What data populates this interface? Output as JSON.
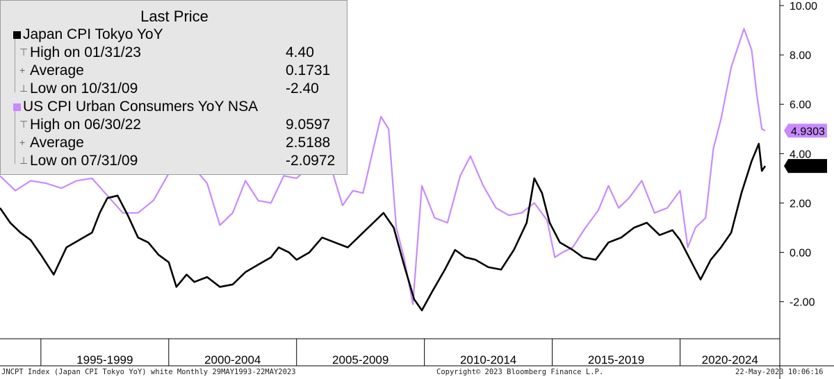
{
  "chart_data": {
    "type": "line",
    "title": "Last Price",
    "x_range": [
      "1993-05",
      "2023-05"
    ],
    "ylim": [
      -3.5,
      10.0
    ],
    "y_ticks": [
      -2.0,
      0.0,
      2.0,
      4.0,
      6.0,
      8.0,
      10.0
    ],
    "y_tick_labels": [
      "-2.00",
      "0.00",
      "2.00",
      "4.00",
      "6.00",
      "8.00",
      "10.00"
    ],
    "x_period_labels": [
      "1995-1999",
      "2000-2004",
      "2005-2009",
      "2010-2014",
      "2015-2019",
      "2020-2024"
    ],
    "grid": false,
    "legend_placement": "top-left",
    "series": [
      {
        "name": "Japan CPI Tokyo YoY",
        "color": "#000000",
        "last_value_label": "3.50",
        "x": [
          1993.4,
          1993.8,
          1994.2,
          1994.6,
          1995.0,
          1995.5,
          1996.0,
          1996.5,
          1997.0,
          1997.3,
          1997.6,
          1998.0,
          1998.4,
          1998.8,
          1999.2,
          1999.6,
          2000.0,
          2000.3,
          2000.7,
          2001.0,
          2001.5,
          2002.0,
          2002.5,
          2003.0,
          2003.5,
          2004.0,
          2004.3,
          2004.7,
          2005.0,
          2005.5,
          2006.0,
          2006.5,
          2007.0,
          2007.5,
          2008.0,
          2008.4,
          2008.8,
          2009.2,
          2009.6,
          2009.9,
          2010.3,
          2010.8,
          2011.2,
          2011.6,
          2012.0,
          2012.5,
          2013.0,
          2013.5,
          2014.0,
          2014.3,
          2014.6,
          2014.9,
          2015.3,
          2015.8,
          2016.2,
          2016.7,
          2017.2,
          2017.7,
          2018.2,
          2018.7,
          2019.2,
          2019.7,
          2020.0,
          2020.4,
          2020.8,
          2021.2,
          2021.6,
          2022.0,
          2022.4,
          2022.8,
          2023.08,
          2023.2,
          2023.33
        ],
        "y": [
          1.8,
          1.2,
          0.8,
          0.5,
          -0.1,
          -0.9,
          0.2,
          0.5,
          0.8,
          1.6,
          2.2,
          2.3,
          1.5,
          0.6,
          0.4,
          -0.1,
          -0.4,
          -1.4,
          -0.9,
          -1.2,
          -1.0,
          -1.4,
          -1.3,
          -0.8,
          -0.5,
          -0.2,
          0.2,
          0.0,
          -0.3,
          0.0,
          0.6,
          0.4,
          0.2,
          0.7,
          1.2,
          1.6,
          1.0,
          -0.5,
          -1.9,
          -2.35,
          -1.6,
          -0.7,
          0.1,
          -0.2,
          -0.3,
          -0.6,
          -0.7,
          0.1,
          1.2,
          3.0,
          2.4,
          1.2,
          0.4,
          0.1,
          -0.2,
          -0.3,
          0.4,
          0.6,
          1.0,
          1.2,
          0.7,
          0.9,
          0.5,
          -0.3,
          -1.1,
          -0.3,
          0.2,
          0.8,
          2.4,
          3.7,
          4.4,
          3.3,
          3.5
        ]
      },
      {
        "name": "US CPI Urban Consumers YoY NSA",
        "color": "#c88aff",
        "last_value_label": "4.9303",
        "x": [
          1993.4,
          1994.0,
          1994.6,
          1995.2,
          1995.8,
          1996.4,
          1997.0,
          1997.6,
          1998.2,
          1998.8,
          1999.4,
          2000.0,
          2000.5,
          2001.0,
          2001.5,
          2002.0,
          2002.5,
          2003.0,
          2003.5,
          2004.0,
          2004.5,
          2005.0,
          2005.5,
          2005.9,
          2006.3,
          2006.8,
          2007.2,
          2007.6,
          2008.0,
          2008.3,
          2008.6,
          2008.9,
          2009.2,
          2009.55,
          2009.9,
          2010.4,
          2010.9,
          2011.4,
          2011.8,
          2012.3,
          2012.8,
          2013.3,
          2013.8,
          2014.3,
          2014.8,
          2015.1,
          2015.4,
          2015.8,
          2016.3,
          2016.8,
          2017.2,
          2017.6,
          2018.0,
          2018.5,
          2019.0,
          2019.5,
          2020.0,
          2020.3,
          2020.6,
          2021.0,
          2021.3,
          2021.6,
          2022.0,
          2022.5,
          2022.8,
          2023.0,
          2023.2,
          2023.33
        ],
        "y": [
          3.1,
          2.5,
          2.9,
          2.8,
          2.6,
          2.9,
          3.0,
          2.3,
          1.6,
          1.6,
          2.1,
          3.2,
          3.7,
          3.4,
          2.8,
          1.1,
          1.6,
          2.9,
          2.1,
          2.0,
          3.1,
          3.0,
          3.5,
          4.6,
          3.6,
          1.9,
          2.5,
          2.4,
          4.2,
          5.5,
          5.0,
          1.0,
          -0.2,
          -2.1,
          2.7,
          1.4,
          1.2,
          3.1,
          3.9,
          2.7,
          1.8,
          1.5,
          1.6,
          2.0,
          1.3,
          -0.2,
          0.0,
          0.2,
          1.0,
          1.7,
          2.7,
          1.8,
          2.2,
          2.9,
          1.6,
          1.8,
          2.5,
          0.2,
          1.0,
          1.4,
          4.2,
          5.4,
          7.5,
          9.06,
          8.2,
          6.4,
          5.0,
          4.9303
        ]
      }
    ]
  },
  "legend": {
    "title": "Last Price",
    "series": [
      {
        "name": "Japan CPI Tokyo YoY",
        "high_label": "High on 01/31/23",
        "high_value": "4.40",
        "avg_label": "Average",
        "avg_value": "0.1731",
        "low_label": "Low on 10/31/09",
        "low_value": "-2.40"
      },
      {
        "name": "US CPI Urban Consumers YoY NSA",
        "high_label": "High on 06/30/22",
        "high_value": "9.0597",
        "avg_label": "Average",
        "avg_value": "2.5188",
        "low_label": "Low on 07/31/09",
        "low_value": "-2.0972"
      }
    ]
  },
  "footer": {
    "left": "JNCPT Index (Japan CPI Tokyo YoY) white  Monthly 29MAY1993-22MAY2023",
    "center": "Copyright© 2023 Bloomberg Finance L.P.",
    "right": "22-May-2023 10:06:16"
  }
}
